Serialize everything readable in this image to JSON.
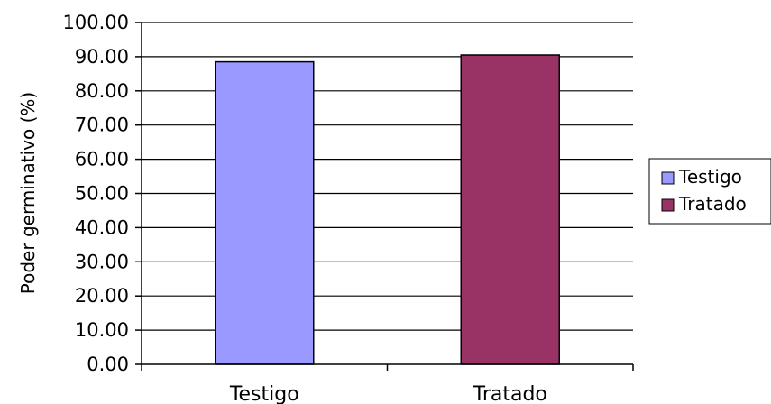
{
  "chart_data": {
    "type": "bar",
    "title": "",
    "xlabel": "",
    "ylabel": "Poder germinativo (%)",
    "categories": [
      "Testigo",
      "Tratado"
    ],
    "series": [
      {
        "name": "Testigo",
        "color": "#9999ff",
        "values": [
          88.5,
          null
        ]
      },
      {
        "name": "Tratado",
        "color": "#993366",
        "values": [
          null,
          90.5
        ]
      }
    ],
    "ylim": [
      0,
      100
    ],
    "yticks": [
      "0.00",
      "10.00",
      "20.00",
      "30.00",
      "40.00",
      "50.00",
      "60.00",
      "70.00",
      "80.00",
      "90.00",
      "100.00"
    ],
    "grid": true,
    "legend_position": "right"
  }
}
